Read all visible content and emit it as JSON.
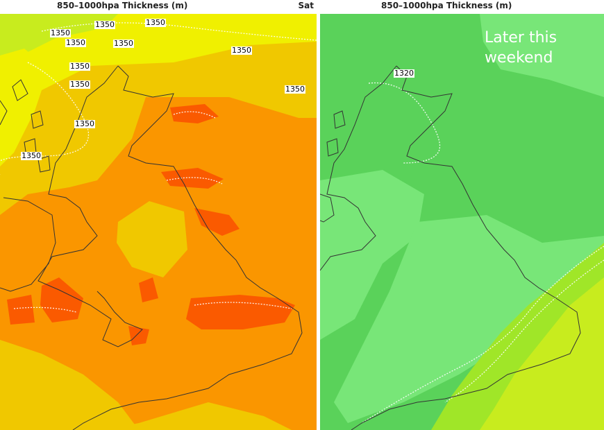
{
  "left_panel": {
    "title": "850–1000hpa Thickness (m)",
    "day": "Sat",
    "contour_labels": [
      "1350",
      "1350",
      "1350",
      "1350",
      "1350",
      "1350",
      "1350",
      "1350",
      "1350",
      "1350"
    ]
  },
  "right_panel": {
    "title": "850–1000hpa Thickness (m)",
    "annotation": "Later this weekend",
    "contour_labels": [
      "1320"
    ]
  },
  "colors": {
    "yellow_green": "#c8ec1e",
    "yellow": "#f0f000",
    "gold": "#f0c800",
    "orange": "#fa9600",
    "red_orange": "#fa5a00",
    "green": "#5ad25a",
    "light_green": "#78e678",
    "lime": "#a0e628",
    "coastline": "#333333"
  }
}
